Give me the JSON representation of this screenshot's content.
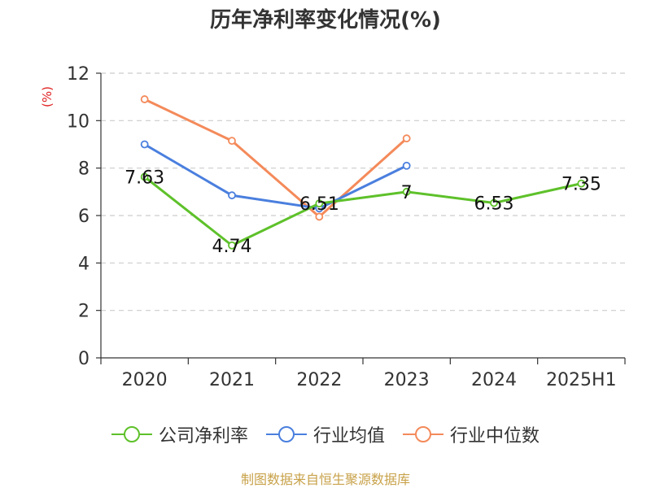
{
  "page_title": "历年净利率变化情况(%)",
  "source": "制图数据来自恒生聚源数据库",
  "colors": {
    "company": "#5ec12a",
    "industry_avg": "#4a7fde",
    "industry_median": "#f48a5a",
    "grid": "#cccccc",
    "axis": "#333333",
    "ylabel": "#e02020",
    "source": "#c8a24a"
  },
  "chart_data": {
    "type": "line",
    "title": "历年净利率变化情况(%)",
    "ylabel": "(%)",
    "xlabel": "",
    "categories": [
      "2020",
      "2021",
      "2022",
      "2023",
      "2024",
      "2025H1"
    ],
    "ylim": [
      0,
      12
    ],
    "yticks": [
      "0",
      "2",
      "4",
      "6",
      "8",
      "10",
      "12"
    ],
    "grid": true,
    "legend_position": "bottom",
    "series": [
      {
        "name": "公司净利率",
        "values": [
          7.63,
          4.74,
          6.51,
          7,
          6.53,
          7.35
        ],
        "labels": [
          "7.63",
          "4.74",
          "6.51",
          "7",
          "6.53",
          "7.35"
        ]
      },
      {
        "name": "行业均值",
        "values": [
          9.0,
          6.85,
          6.3,
          8.1,
          null,
          null
        ]
      },
      {
        "name": "行业中位数",
        "values": [
          10.9,
          9.15,
          5.95,
          9.25,
          null,
          null
        ]
      }
    ]
  }
}
